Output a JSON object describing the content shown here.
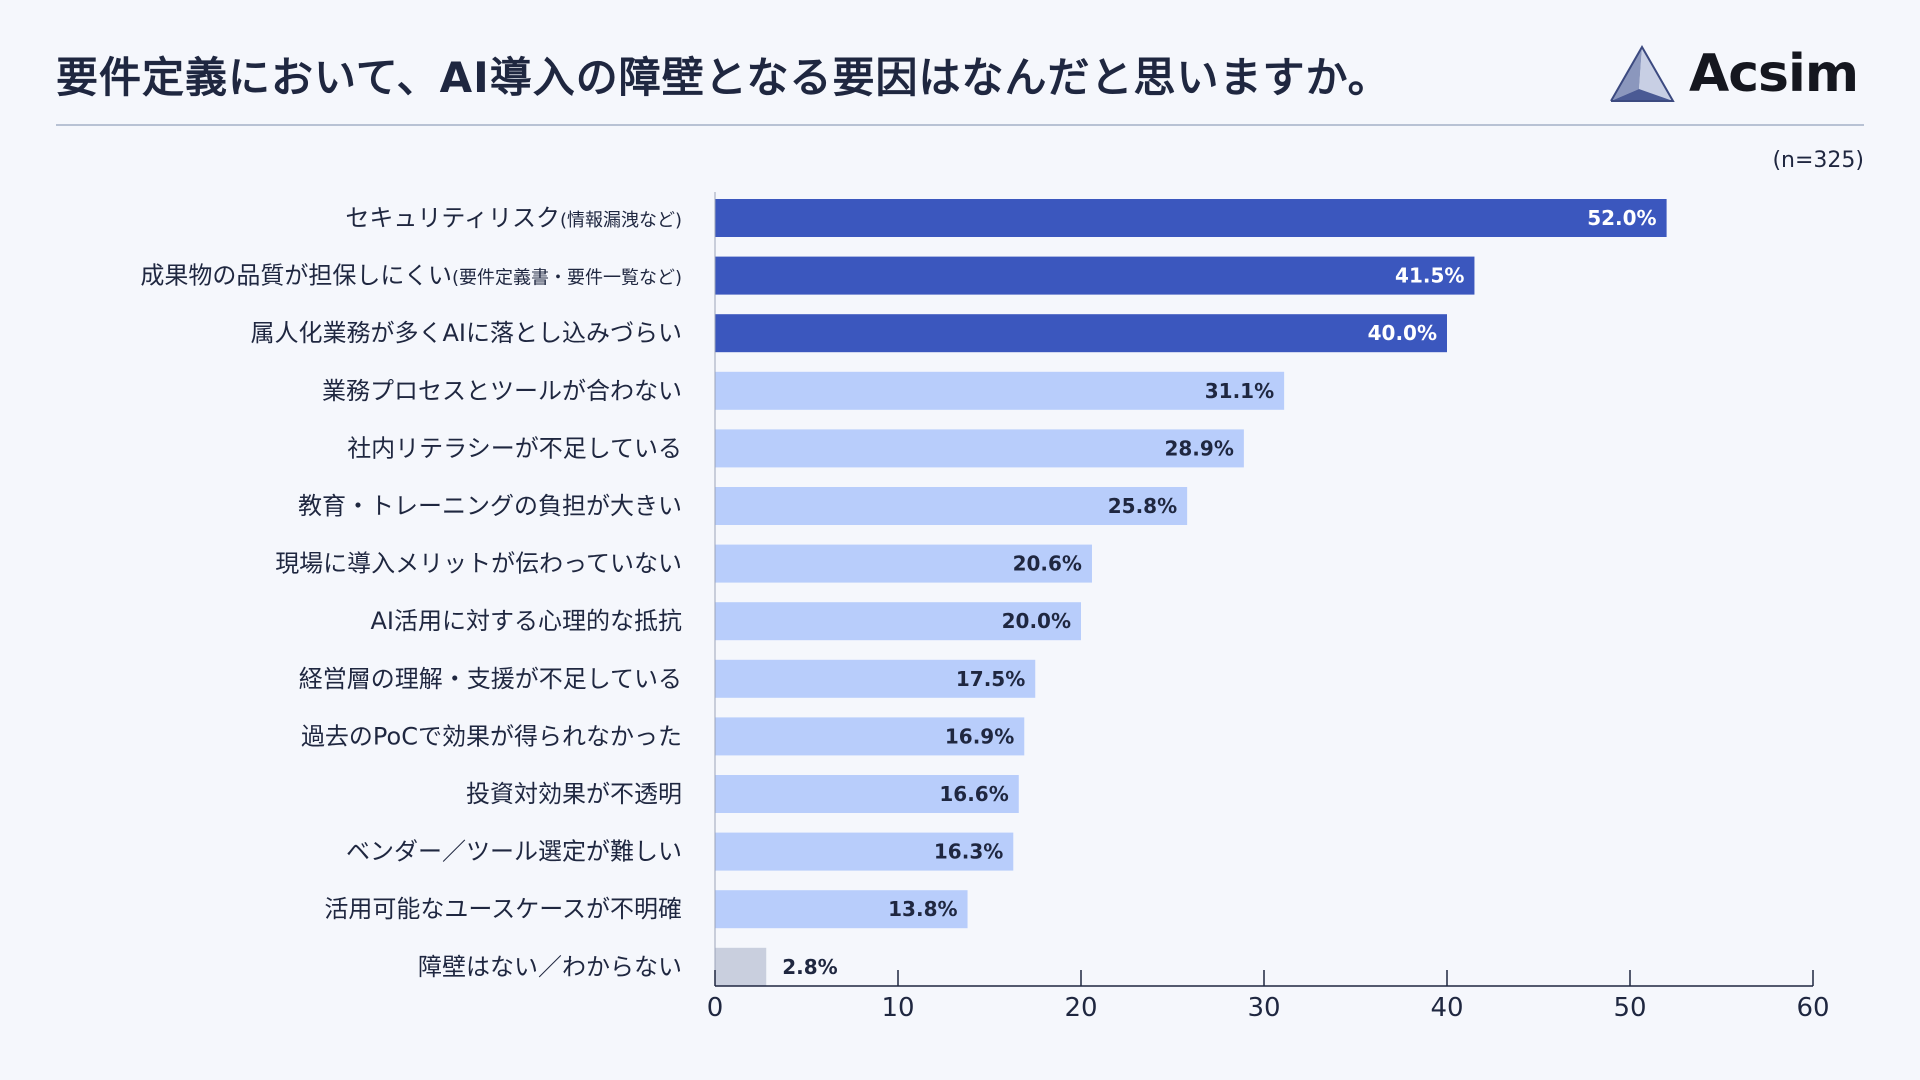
{
  "header": {
    "title": "要件定義において、AI導入の障壁となる要因はなんだと思いますか。",
    "logo_text": "Acsim",
    "sample_size": "(n=325)"
  },
  "colors": {
    "highlight": "#3b57be",
    "normal": "#b8cdfb",
    "neutral": "#c9cfde",
    "axis": "#1f2740"
  },
  "chart_data": {
    "type": "bar",
    "orientation": "horizontal",
    "title": "要件定義において、AI導入の障壁となる要因はなんだと思いますか。",
    "xlim": [
      0,
      60
    ],
    "xticks": [
      "0",
      "10",
      "20",
      "30",
      "40",
      "50",
      "60"
    ],
    "xlabel": "",
    "ylabel": "",
    "grid": false,
    "categories": [
      {
        "label": "セキュリティリスク",
        "sub": "(情報漏洩など)"
      },
      {
        "label": "成果物の品質が担保しにくい",
        "sub": "(要件定義書・要件一覧など)"
      },
      {
        "label": "属人化業務が多くAIに落とし込みづらい",
        "sub": ""
      },
      {
        "label": "業務プロセスとツールが合わない",
        "sub": ""
      },
      {
        "label": "社内リテラシーが不足している",
        "sub": ""
      },
      {
        "label": "教育・トレーニングの負担が大きい",
        "sub": ""
      },
      {
        "label": "現場に導入メリットが伝わっていない",
        "sub": ""
      },
      {
        "label": "AI活用に対する心理的な抵抗",
        "sub": ""
      },
      {
        "label": "経営層の理解・支援が不足している",
        "sub": ""
      },
      {
        "label": "過去のPoCで効果が得られなかった",
        "sub": ""
      },
      {
        "label": "投資対効果が不透明",
        "sub": ""
      },
      {
        "label": "ベンダー／ツール選定が難しい",
        "sub": ""
      },
      {
        "label": "活用可能なユースケースが不明確",
        "sub": ""
      },
      {
        "label": "障壁はない／わからない",
        "sub": ""
      }
    ],
    "values": [
      52.0,
      41.5,
      40.0,
      31.1,
      28.9,
      25.8,
      20.6,
      20.0,
      17.5,
      16.9,
      16.6,
      16.3,
      13.8,
      2.8
    ],
    "value_labels": [
      "52.0%",
      "41.5%",
      "40.0%",
      "31.1%",
      "28.9%",
      "25.8%",
      "20.6%",
      "20.0%",
      "17.5%",
      "16.9%",
      "16.6%",
      "16.3%",
      "13.8%",
      "2.8%"
    ],
    "bar_style": [
      "highlight",
      "highlight",
      "highlight",
      "normal",
      "normal",
      "normal",
      "normal",
      "normal",
      "normal",
      "normal",
      "normal",
      "normal",
      "normal",
      "neutral"
    ]
  }
}
